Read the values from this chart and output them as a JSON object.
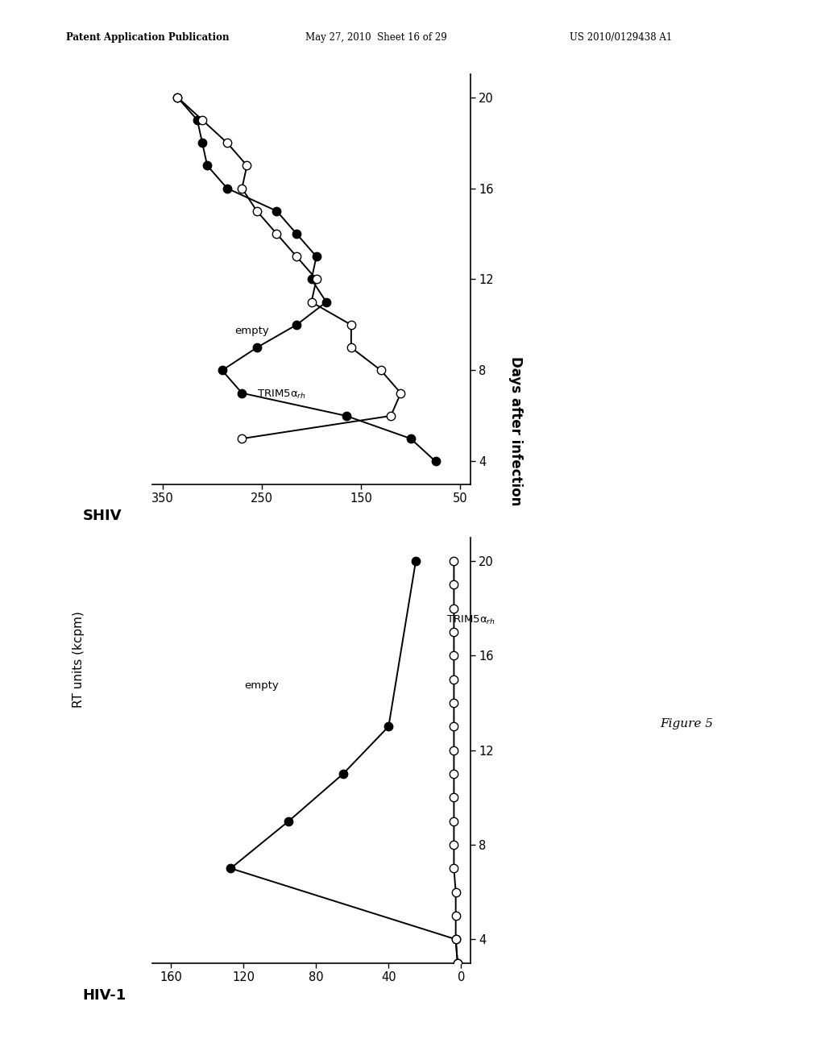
{
  "header_left": "Patent Application Publication",
  "header_mid": "May 27, 2010  Sheet 16 of 29",
  "header_right": "US 2010/0129438 A1",
  "figure_label": "Figure 5",
  "days_label": "Days after infection",
  "rt_label": "RT units (kcpm)",
  "hiv1": {
    "title": "HIV-1",
    "xlim": [
      0,
      160
    ],
    "xticks": [
      0,
      40,
      80,
      120,
      160
    ],
    "ylim": [
      3,
      21
    ],
    "yticks": [
      4,
      8,
      12,
      16,
      20
    ],
    "empty_days": [
      3,
      4,
      7,
      9,
      11,
      13,
      20
    ],
    "empty_rt": [
      2,
      3,
      127,
      95,
      65,
      40,
      25
    ],
    "trim_days": [
      3,
      4,
      5,
      6,
      7,
      8,
      9,
      10,
      11,
      12,
      13,
      14,
      15,
      16,
      17,
      18,
      19,
      20
    ],
    "trim_rt": [
      2,
      3,
      3,
      3,
      4,
      4,
      4,
      4,
      4,
      4,
      4,
      4,
      4,
      4,
      4,
      4,
      4,
      4
    ]
  },
  "shiv": {
    "title": "SHIV",
    "xlim": [
      50,
      350
    ],
    "xticks": [
      50,
      150,
      250,
      350
    ],
    "ylim": [
      3,
      21
    ],
    "yticks": [
      4,
      8,
      12,
      16,
      20
    ],
    "empty_days": [
      4,
      5,
      6,
      7,
      8,
      9,
      10,
      11,
      12,
      13,
      14,
      15,
      16,
      17,
      18,
      19,
      20
    ],
    "empty_rt": [
      75,
      100,
      165,
      270,
      290,
      255,
      215,
      185,
      200,
      195,
      215,
      235,
      285,
      305,
      310,
      315,
      335
    ],
    "trim_days": [
      5,
      6,
      7,
      8,
      9,
      10,
      11,
      12,
      13,
      14,
      15,
      16,
      17,
      18,
      19,
      20
    ],
    "trim_rt": [
      270,
      120,
      110,
      130,
      160,
      160,
      200,
      195,
      215,
      235,
      255,
      270,
      265,
      285,
      310,
      335
    ]
  }
}
